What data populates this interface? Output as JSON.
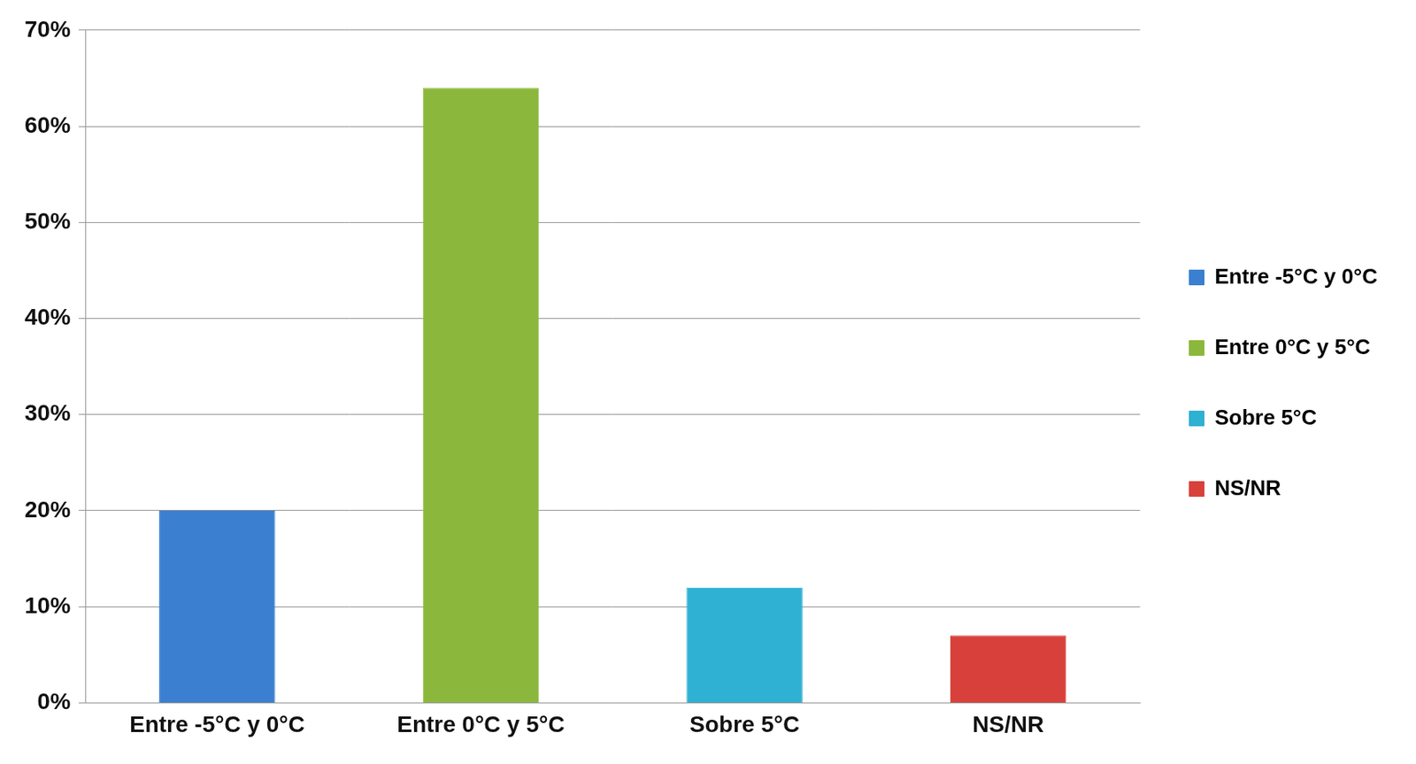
{
  "chart_data": {
    "type": "bar",
    "categories": [
      "Entre -5°C y 0°C",
      "Entre 0°C y 5°C",
      "Sobre 5°C",
      "NS/NR"
    ],
    "values": [
      20,
      64,
      12,
      7
    ],
    "colors": [
      "#3b7fd0",
      "#8bb83c",
      "#2eb1d2",
      "#d8413b"
    ],
    "ylim": [
      0,
      70
    ],
    "yticks": [
      {
        "value": 0,
        "label": "0%"
      },
      {
        "value": 10,
        "label": "10%"
      },
      {
        "value": 20,
        "label": "20%"
      },
      {
        "value": 30,
        "label": "30%"
      },
      {
        "value": 40,
        "label": "40%"
      },
      {
        "value": 50,
        "label": "50%"
      },
      {
        "value": 60,
        "label": "60%"
      },
      {
        "value": 70,
        "label": "70%"
      }
    ],
    "grid": true,
    "legend": "right"
  }
}
